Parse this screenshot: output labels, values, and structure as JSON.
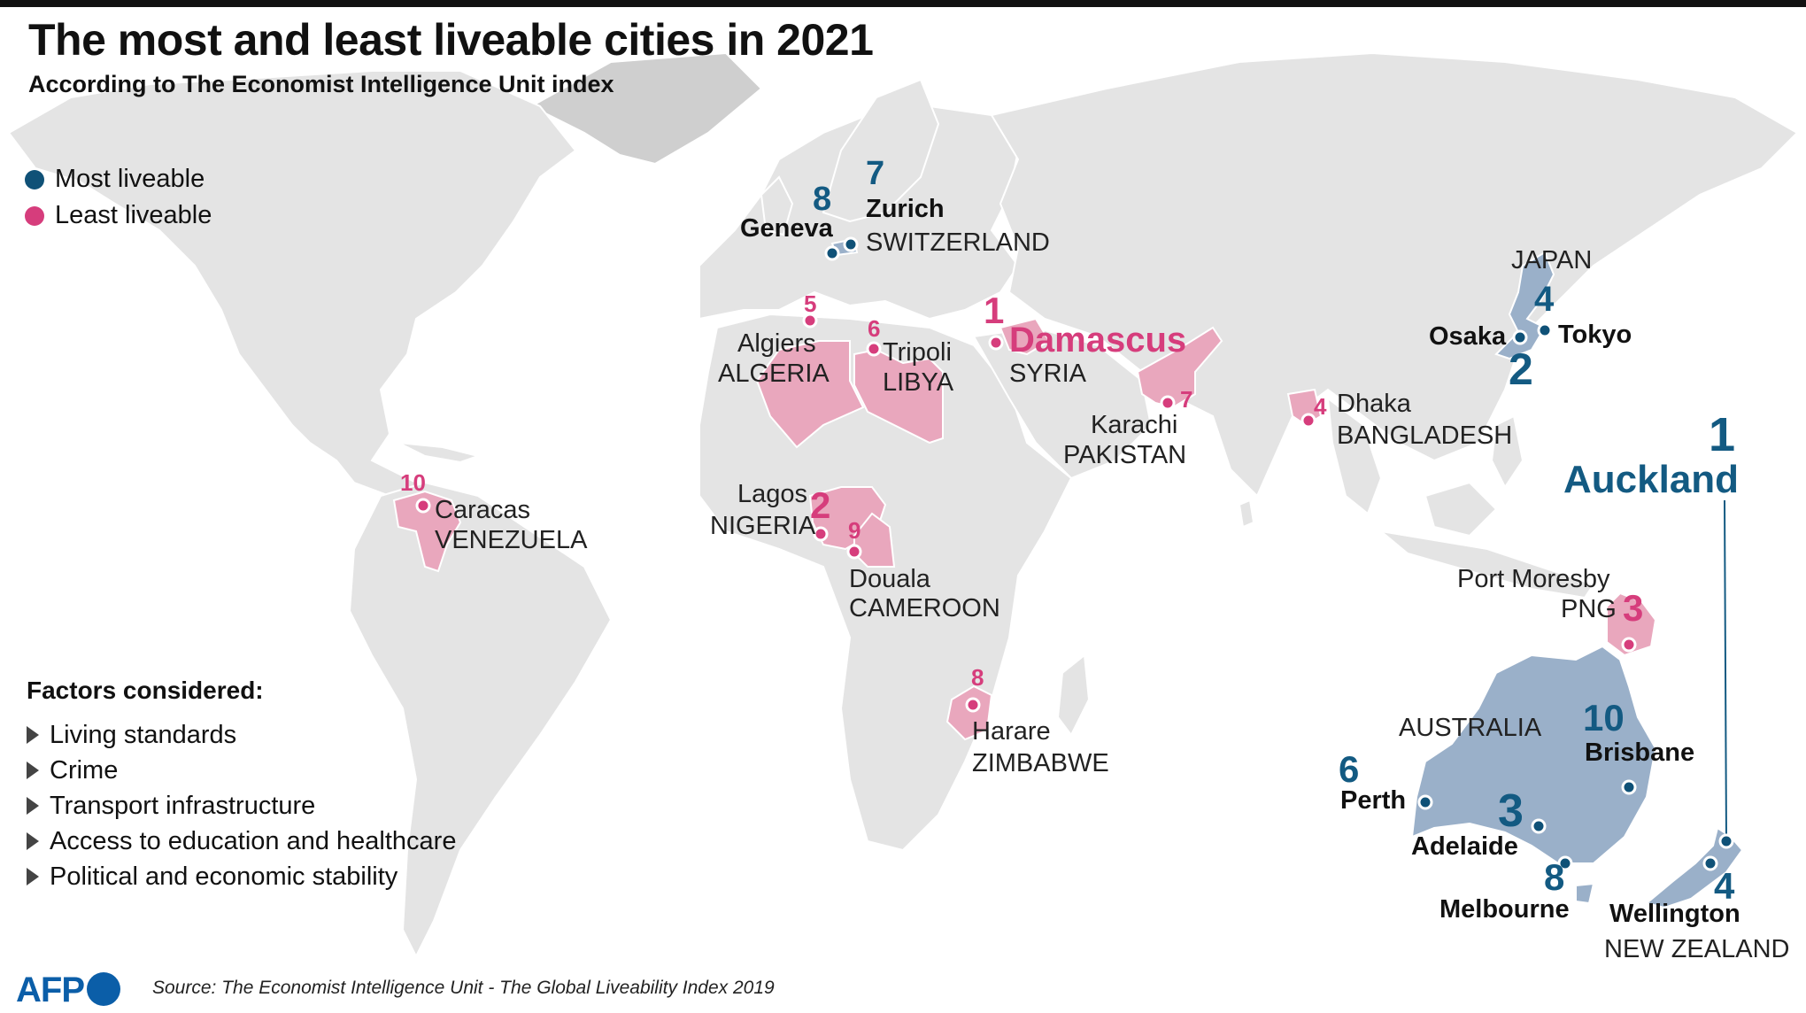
{
  "title": "The most and least liveable cities in 2021",
  "subtitle": "According to The Economist Intelligence Unit index",
  "legend": {
    "most": {
      "label": "Most liveable",
      "color": "#0f5177"
    },
    "least": {
      "label": "Least liveable",
      "color": "#d63d7c"
    }
  },
  "factors": {
    "title": "Factors considered:",
    "items": [
      "Living standards",
      "Crime",
      "Transport infrastructure",
      "Access to education and healthcare",
      "Political and economic stability"
    ]
  },
  "most_liveable": [
    {
      "rank": "1",
      "city": "Auckland",
      "country": "NEW ZEALAND"
    },
    {
      "rank": "2",
      "city": "Osaka",
      "country": "JAPAN"
    },
    {
      "rank": "3",
      "city": "Adelaide",
      "country": "AUSTRALIA"
    },
    {
      "rank": "4",
      "city": "Wellington",
      "country": "NEW ZEALAND"
    },
    {
      "rank": "4",
      "city": "Tokyo",
      "country": "JAPAN"
    },
    {
      "rank": "6",
      "city": "Perth",
      "country": "AUSTRALIA"
    },
    {
      "rank": "7",
      "city": "Zurich",
      "country": "SWITZERLAND"
    },
    {
      "rank": "8",
      "city": "Geneva",
      "country": "SWITZERLAND"
    },
    {
      "rank": "8",
      "city": "Melbourne",
      "country": "AUSTRALIA"
    },
    {
      "rank": "10",
      "city": "Brisbane",
      "country": "AUSTRALIA"
    }
  ],
  "least_liveable": [
    {
      "rank": "1",
      "city": "Damascus",
      "country": "SYRIA"
    },
    {
      "rank": "2",
      "city": "Lagos",
      "country": "NIGERIA"
    },
    {
      "rank": "3",
      "city": "Port Moresby",
      "country": "PNG"
    },
    {
      "rank": "4",
      "city": "Dhaka",
      "country": "BANGLADESH"
    },
    {
      "rank": "5",
      "city": "Algiers",
      "country": "ALGERIA"
    },
    {
      "rank": "6",
      "city": "Tripoli",
      "country": "LIBYA"
    },
    {
      "rank": "7",
      "city": "Karachi",
      "country": "PAKISTAN"
    },
    {
      "rank": "8",
      "city": "Harare",
      "country": "ZIMBABWE"
    },
    {
      "rank": "9",
      "city": "Douala",
      "country": "CAMEROON"
    },
    {
      "rank": "10",
      "city": "Caracas",
      "country": "VENEZUELA"
    }
  ],
  "source": "Source:  The Economist Intelligence Unit - The Global Liveability Index 2019",
  "credit": "AFP"
}
